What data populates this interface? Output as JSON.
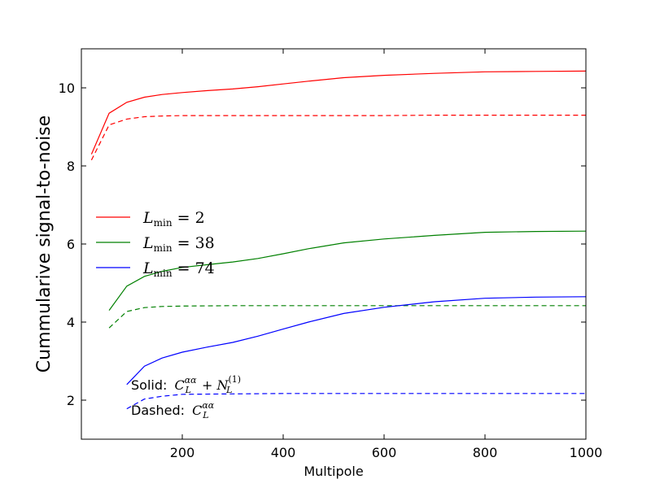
{
  "chart_data": {
    "type": "line",
    "title": "",
    "xlabel": "Multipole",
    "ylabel": "Cummularive signal-to-noise",
    "xlim": [
      0,
      1000
    ],
    "ylim": [
      1,
      11
    ],
    "x_ticks": [
      200,
      400,
      600,
      800,
      1000
    ],
    "y_ticks": [
      2,
      4,
      6,
      8,
      10
    ],
    "grid": false,
    "legend_placement": "center-left",
    "series": [
      {
        "name": "L_min=2",
        "color": "#ff0000",
        "style": "solid",
        "x": [
          20,
          55,
          90,
          125,
          160,
          200,
          250,
          300,
          350,
          400,
          450,
          520,
          600,
          700,
          800,
          900,
          1000
        ],
        "y": [
          8.3,
          9.35,
          9.63,
          9.76,
          9.83,
          9.88,
          9.93,
          9.97,
          10.03,
          10.1,
          10.17,
          10.26,
          10.32,
          10.37,
          10.41,
          10.42,
          10.43
        ]
      },
      {
        "name": "",
        "color": "#ff0000",
        "style": "dashed",
        "x": [
          20,
          55,
          90,
          125,
          160,
          200,
          300,
          400,
          500,
          600,
          700,
          800,
          900,
          1000
        ],
        "y": [
          8.15,
          9.05,
          9.2,
          9.26,
          9.28,
          9.29,
          9.29,
          9.29,
          9.29,
          9.29,
          9.3,
          9.3,
          9.3,
          9.3
        ]
      },
      {
        "name": "L_min=38",
        "color": "#008000",
        "style": "solid",
        "x": [
          55,
          90,
          125,
          160,
          200,
          250,
          300,
          350,
          400,
          450,
          520,
          600,
          700,
          800,
          900,
          1000
        ],
        "y": [
          4.3,
          4.92,
          5.17,
          5.3,
          5.4,
          5.47,
          5.54,
          5.63,
          5.75,
          5.88,
          6.03,
          6.13,
          6.22,
          6.3,
          6.32,
          6.33
        ]
      },
      {
        "name": "",
        "color": "#008000",
        "style": "dashed",
        "x": [
          55,
          90,
          125,
          160,
          200,
          300,
          400,
          500,
          600,
          700,
          800,
          900,
          1000
        ],
        "y": [
          3.85,
          4.27,
          4.37,
          4.4,
          4.41,
          4.42,
          4.42,
          4.42,
          4.42,
          4.42,
          4.42,
          4.42,
          4.42
        ]
      },
      {
        "name": "L_min=74",
        "color": "#0000ff",
        "style": "solid",
        "x": [
          90,
          125,
          160,
          200,
          250,
          300,
          350,
          400,
          450,
          520,
          600,
          700,
          800,
          900,
          1000
        ],
        "y": [
          2.4,
          2.87,
          3.08,
          3.23,
          3.36,
          3.48,
          3.64,
          3.82,
          4.0,
          4.22,
          4.38,
          4.52,
          4.61,
          4.64,
          4.65
        ]
      },
      {
        "name": "",
        "color": "#0000ff",
        "style": "dashed",
        "x": [
          90,
          125,
          160,
          200,
          300,
          400,
          500,
          600,
          700,
          800,
          900,
          1000
        ],
        "y": [
          1.78,
          2.03,
          2.1,
          2.15,
          2.16,
          2.17,
          2.17,
          2.17,
          2.17,
          2.17,
          2.17,
          2.17
        ]
      }
    ],
    "annotations": [
      {
        "text": "Solid:",
        "math": "C_L^{αα} + N_L^{(1)}",
        "x": 98,
        "y": 2.3
      },
      {
        "text": "Dashed:",
        "math": "C_L^{αα}",
        "x": 98,
        "y": 1.65
      }
    ]
  }
}
